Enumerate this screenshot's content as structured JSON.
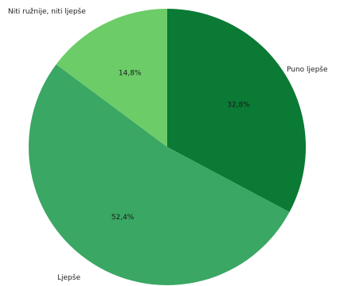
{
  "chart_data": {
    "type": "pie",
    "categories": [
      "Puno ljepše",
      "Ljepše",
      "Niti ružnije, niti ljepše"
    ],
    "values": [
      32.8,
      52.4,
      14.8
    ],
    "value_labels": [
      "32,8%",
      "52,4%",
      "14,8%"
    ],
    "colors": [
      "#0a7a34",
      "#3aa764",
      "#6ccc68"
    ],
    "start_angle": "12 o'clock",
    "direction": "clockwise",
    "legend": "none"
  }
}
